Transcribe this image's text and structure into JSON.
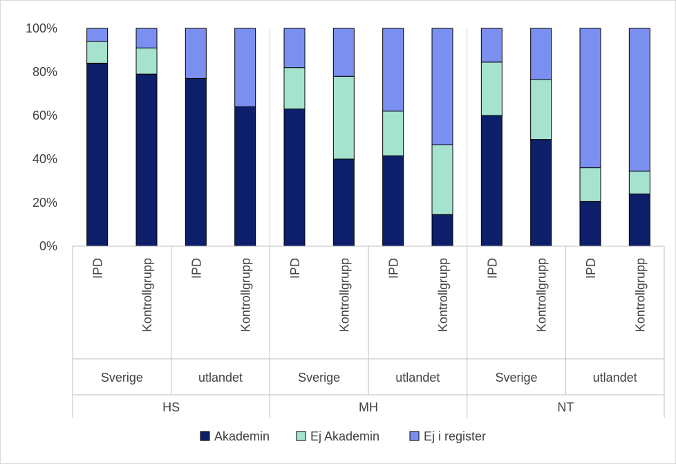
{
  "chart_data": {
    "type": "bar",
    "stacked": true,
    "percent": true,
    "title": "",
    "xlabel": "",
    "ylabel": "",
    "ylim": [
      0,
      100
    ],
    "y_ticks": [
      "0%",
      "20%",
      "40%",
      "60%",
      "80%",
      "100%"
    ],
    "groups": [
      {
        "label": "HS",
        "subgroups": [
          {
            "label": "Sverige",
            "categories": [
              "IPD",
              "Kontrollgrupp"
            ]
          },
          {
            "label": "utlandet",
            "categories": [
              "IPD",
              "Kontrollgrupp"
            ]
          }
        ]
      },
      {
        "label": "MH",
        "subgroups": [
          {
            "label": "Sverige",
            "categories": [
              "IPD",
              "Kontrollgrupp"
            ]
          },
          {
            "label": "utlandet",
            "categories": [
              "IPD",
              "Kontrollgrupp"
            ]
          }
        ]
      },
      {
        "label": "NT",
        "subgroups": [
          {
            "label": "Sverige",
            "categories": [
              "IPD",
              "Kontrollgrupp"
            ]
          },
          {
            "label": "utlandet",
            "categories": [
              "IPD",
              "Kontrollgrupp"
            ]
          }
        ]
      }
    ],
    "series": [
      {
        "name": "Akademin",
        "color": "#0d1f6b",
        "values": [
          84,
          79,
          77,
          64,
          63,
          40,
          41.5,
          14.5,
          60,
          49,
          20.5,
          24
        ]
      },
      {
        "name": "Ej Akademin",
        "color": "#a6e3cf",
        "values": [
          10,
          12,
          0,
          0,
          19,
          38,
          20.5,
          32,
          24.5,
          27.5,
          15.5,
          10.5
        ]
      },
      {
        "name": "Ej i register",
        "color": "#7b8ff0",
        "values": [
          6,
          9,
          23,
          36,
          18,
          22,
          38,
          53.5,
          15.5,
          23.5,
          64,
          65.5
        ]
      }
    ],
    "grid": false,
    "legend_position": "bottom"
  }
}
